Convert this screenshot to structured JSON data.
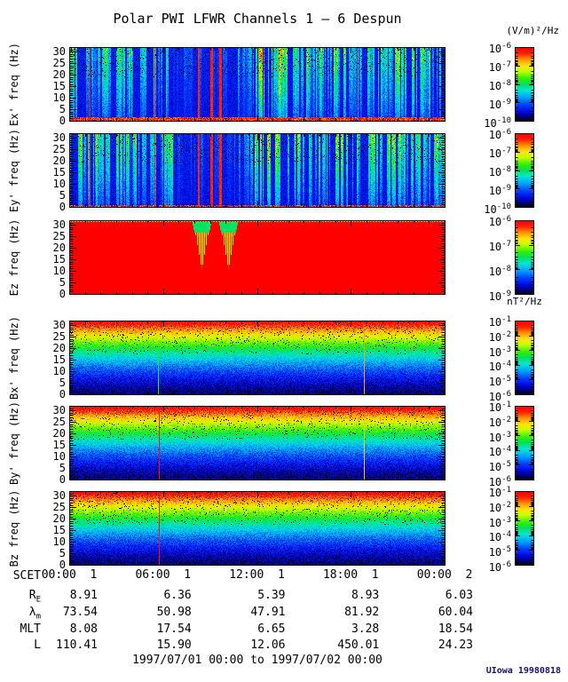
{
  "title": "Polar PWI LFWR Channels 1 – 6 Despun",
  "credit": "UIowa 19980818",
  "units": {
    "electric": "(V/m)²/Hz",
    "magnetic": "nT²/Hz"
  },
  "time_range_label": "1997/07/01 00:00 to 1997/07/02 00:00",
  "colorbar_base": "10",
  "x_axis": {
    "name": "SCET",
    "major_hours": [
      0,
      6,
      12,
      18,
      24
    ],
    "ticks": [
      {
        "time": "00:00",
        "day": "1"
      },
      {
        "time": "06:00",
        "day": "1"
      },
      {
        "time": "12:00",
        "day": "1"
      },
      {
        "time": "18:00",
        "day": "1"
      },
      {
        "time": "00:00",
        "day": "2"
      }
    ]
  },
  "y_axis": {
    "tick_labels": [
      "30",
      "25",
      "20",
      "15",
      "10",
      "5",
      "0"
    ],
    "tick_values": [
      30,
      25,
      20,
      15,
      10,
      5,
      0
    ],
    "max_hz": 32
  },
  "panels": [
    {
      "key": "ex",
      "ylabel": "Ex' freq (Hz)",
      "pattern": "e",
      "seed": 11,
      "colorbar_exponents": [
        "-6",
        "-7",
        "-8",
        "-9",
        "-10"
      ],
      "features": {
        "zones": [
          [
            0.27,
            0.43,
            0.28
          ],
          [
            0.43,
            0.49,
            0.55
          ],
          [
            0.49,
            0.56,
            1.45
          ]
        ],
        "red_lines": [
          0.054,
          0.227
        ],
        "red_bands": [
          [
            0.342,
            2
          ],
          [
            0.376,
            3
          ],
          [
            0.399,
            3
          ]
        ],
        "bottom_rows": 5,
        "bottom_density": 0.85
      }
    },
    {
      "key": "ey",
      "ylabel": "Ey' freq (Hz)",
      "pattern": "e",
      "seed": 27,
      "colorbar_exponents": [
        "-6",
        "-7",
        "-8",
        "-9",
        "-10"
      ],
      "features": {
        "zones": [
          [
            0.27,
            0.43,
            0.28
          ],
          [
            0.43,
            0.49,
            0.55
          ],
          [
            0.49,
            0.56,
            1.45
          ]
        ],
        "red_lines": [
          0.054,
          0.227
        ],
        "red_bands": [
          [
            0.342,
            2
          ],
          [
            0.376,
            3
          ],
          [
            0.399,
            3
          ]
        ],
        "bottom_rows": 3,
        "bottom_density": 0.65
      }
    },
    {
      "key": "ez",
      "ylabel": "Ez freq (Hz)",
      "pattern": "ez",
      "seed": 39,
      "colorbar_exponents": [
        "-6",
        "-7",
        "-8",
        "-9"
      ],
      "features": {
        "notches": [
          0.351,
          0.422
        ]
      }
    },
    {
      "key": "bx",
      "ylabel": "Bx' freq (Hz)",
      "pattern": "b",
      "seed": 51,
      "colorbar_exponents": [
        "-1",
        "-2",
        "-3",
        "-4",
        "-5",
        "-6"
      ],
      "features": {
        "lines": [
          {
            "pos": 0.236,
            "v": 0.56
          },
          {
            "pos": 0.785,
            "v": 0.82
          }
        ]
      }
    },
    {
      "key": "by",
      "ylabel": "By' freq (Hz)",
      "pattern": "b",
      "seed": 63,
      "colorbar_exponents": [
        "-1",
        "-2",
        "-3",
        "-4",
        "-5",
        "-6"
      ],
      "features": {
        "lines": [
          {
            "pos": 0.238,
            "v": 0.96
          },
          {
            "pos": 0.785,
            "v": 0.78
          }
        ]
      }
    },
    {
      "key": "bz",
      "ylabel": "Bz freq (Hz)",
      "pattern": "b",
      "seed": 75,
      "colorbar_exponents": [
        "-1",
        "-2",
        "-3",
        "-4",
        "-5",
        "-6"
      ],
      "features": {
        "lines": [
          {
            "pos": 0.238,
            "v": 0.96
          }
        ]
      }
    }
  ],
  "ephemeris": {
    "rows": [
      {
        "label_base": "R",
        "label_sub": "E",
        "values": [
          "8.91",
          "6.36",
          "5.39",
          "8.93",
          "6.03"
        ]
      },
      {
        "label_base": "λ",
        "label_sub": "m",
        "values": [
          "73.54",
          "50.98",
          "47.91",
          "81.92",
          "60.04"
        ]
      },
      {
        "label_base": "MLT",
        "label_sub": "",
        "values": [
          "8.08",
          "17.54",
          "6.65",
          "3.28",
          "18.54"
        ]
      },
      {
        "label_base": "L",
        "label_sub": "",
        "values": [
          "110.41",
          "15.90",
          "12.06",
          "450.01",
          "24.23"
        ]
      }
    ]
  },
  "chart_data": {
    "type": "heatmap",
    "title": "Polar PWI LFWR Channels 1 – 6 Despun",
    "xlabel": "SCET",
    "x_range": "1997/07/01 00:00 to 1997/07/02 00:00",
    "x_ticks": [
      "00:00 1",
      "06:00 1",
      "12:00 1",
      "18:00 1",
      "00:00 2"
    ],
    "ylabel": "freq (Hz)",
    "ylim": [
      0,
      32
    ],
    "y_ticks": [
      0,
      5,
      10,
      15,
      20,
      25,
      30
    ],
    "legend_position": "right-colorbars",
    "panels": [
      {
        "name": "Ex'",
        "units": "(V/m)²/Hz",
        "color_scale_ticks": [
          "1e-6",
          "1e-7",
          "1e-8",
          "1e-9",
          "1e-10"
        ],
        "description": "blue background, many cyan-green vertical bursts, red saturated bands near 08:00-10:00, red band along 0 Hz"
      },
      {
        "name": "Ey'",
        "units": "(V/m)²/Hz",
        "color_scale_ticks": [
          "1e-6",
          "1e-7",
          "1e-8",
          "1e-9",
          "1e-10"
        ],
        "description": "similar to Ex' with red saturated bands near 08:00-10:00"
      },
      {
        "name": "Ez",
        "units": "(V/m)²/Hz",
        "color_scale_ticks": [
          "1e-6",
          "1e-7",
          "1e-8",
          "1e-9"
        ],
        "description": "saturated red everywhere except two green/yellow funnel notches near 08:30 and 10:15"
      },
      {
        "name": "Bx'",
        "units": "nT²/Hz",
        "color_scale_ticks": [
          "1e-1",
          "1e-2",
          "1e-3",
          "1e-4",
          "1e-5",
          "1e-6"
        ],
        "description": "smooth red-to-blue vertical gradient, green line ~05:40, orange line ~18:50"
      },
      {
        "name": "By'",
        "units": "nT²/Hz",
        "color_scale_ticks": [
          "1e-1",
          "1e-2",
          "1e-3",
          "1e-4",
          "1e-5",
          "1e-6"
        ],
        "description": "gradient with red line ~05:40, orange line ~18:50"
      },
      {
        "name": "Bz",
        "units": "nT²/Hz",
        "color_scale_ticks": [
          "1e-1",
          "1e-2",
          "1e-3",
          "1e-4",
          "1e-5",
          "1e-6"
        ],
        "description": "gradient with red line ~05:40"
      }
    ],
    "ephemeris_table": {
      "columns": [
        "00:00 1",
        "06:00 1",
        "12:00 1",
        "18:00 1",
        "00:00 2"
      ],
      "rows": [
        {
          "label": "RE",
          "values": [
            8.91,
            6.36,
            5.39,
            8.93,
            6.03
          ]
        },
        {
          "label": "λm",
          "values": [
            73.54,
            50.98,
            47.91,
            81.92,
            60.04
          ]
        },
        {
          "label": "MLT",
          "values": [
            8.08,
            17.54,
            6.65,
            3.28,
            18.54
          ]
        },
        {
          "label": "L",
          "values": [
            110.41,
            15.9,
            12.06,
            450.01,
            24.23
          ]
        }
      ]
    }
  }
}
